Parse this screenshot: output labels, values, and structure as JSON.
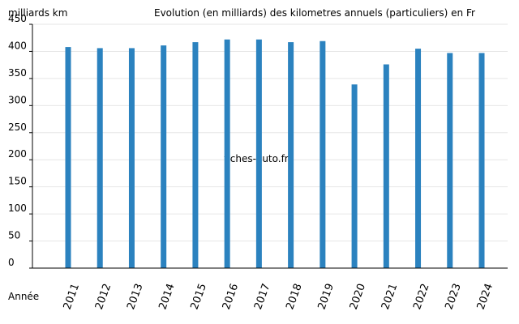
{
  "chart_data": {
    "type": "bar",
    "title": "Evolution (en milliards) des kilometres annuels (particuliers) en Fr",
    "ylabel": "milliards km",
    "xlabel": "Année",
    "watermark": "fiches-auto.fr",
    "categories": [
      "2011",
      "2012",
      "2013",
      "2014",
      "2015",
      "2016",
      "2017",
      "2018",
      "2019",
      "2020",
      "2021",
      "2022",
      "2023",
      "2024"
    ],
    "values": [
      408,
      406,
      406,
      411,
      417,
      422,
      422,
      417,
      419,
      339,
      376,
      405,
      397,
      397
    ],
    "ylim": [
      0,
      450
    ],
    "yticks": [
      0,
      50,
      100,
      150,
      200,
      250,
      300,
      350,
      400,
      450
    ],
    "grid": true,
    "legend": "none",
    "colors": {
      "bar": "#2b82bf",
      "grid": "#e6e6e6",
      "axis": "#000000",
      "watermark": "#e0e0e0"
    }
  }
}
